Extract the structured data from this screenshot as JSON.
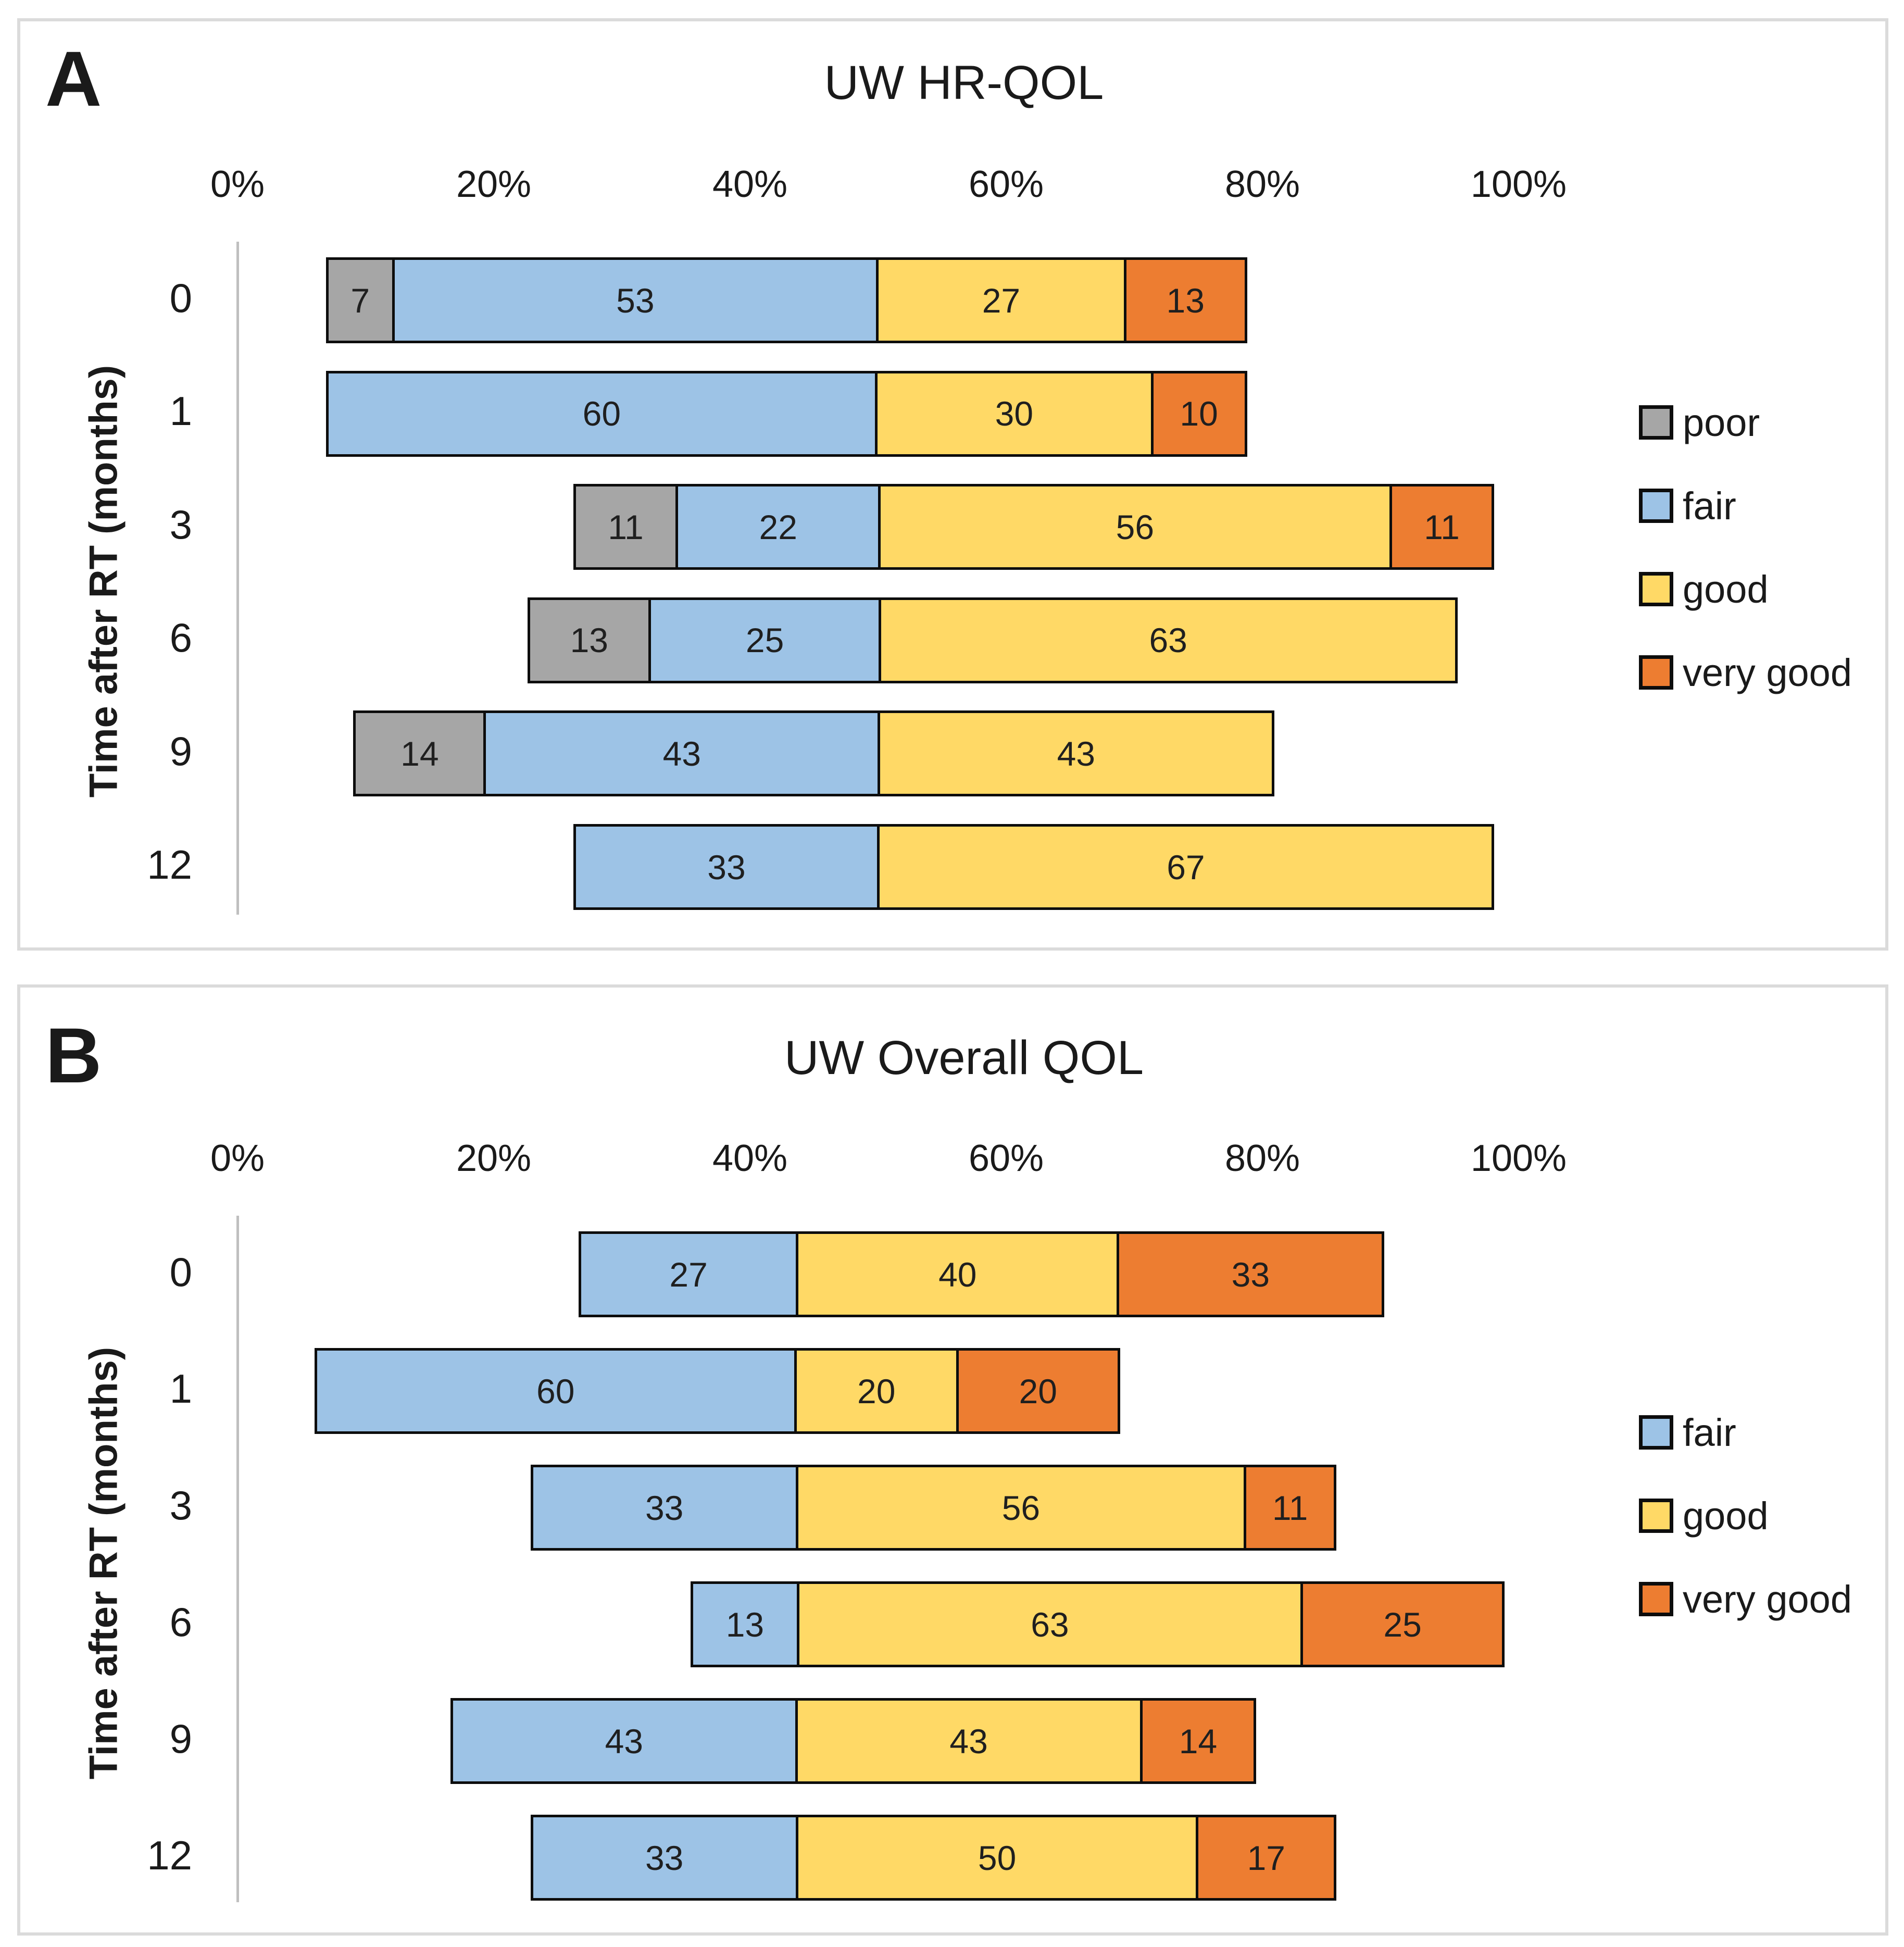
{
  "figure": {
    "panels": [
      {
        "panel_label": "A",
        "title": "UW HR-QOL",
        "y_axis_label": "Time after RT (months)",
        "x_tick_labels": [
          "0%",
          "20%",
          "40%",
          "60%",
          "80%",
          "100%"
        ],
        "row_labels": [
          "0",
          "1",
          "3",
          "6",
          "9",
          "12"
        ],
        "legend": [
          {
            "label": "poor",
            "color": "#A6A6A6"
          },
          {
            "label": "fair",
            "color": "#9DC3E6"
          },
          {
            "label": "good",
            "color": "#FFD966"
          },
          {
            "label": "very good",
            "color": "#ED7D31"
          }
        ]
      },
      {
        "panel_label": "B",
        "title": "UW Overall QOL",
        "y_axis_label": "Time after RT (months)",
        "x_tick_labels": [
          "0%",
          "20%",
          "40%",
          "60%",
          "80%",
          "100%"
        ],
        "row_labels": [
          "0",
          "1",
          "3",
          "6",
          "9",
          "12"
        ],
        "legend": [
          {
            "label": "fair",
            "color": "#9DC3E6"
          },
          {
            "label": "good",
            "color": "#FFD966"
          },
          {
            "label": "very good",
            "color": "#ED7D31"
          }
        ]
      }
    ],
    "colors": {
      "poor": "#A6A6A6",
      "fair": "#9DC3E6",
      "good": "#FFD966",
      "very_good": "#ED7D31",
      "bar_border": "#0d0d0d",
      "axis_line": "#BFBFBF",
      "panel_border": "#DBDBDB"
    }
  },
  "chart_data": [
    {
      "type": "bar",
      "orientation": "horizontal",
      "stacked": true,
      "diverging": true,
      "title": "UW HR-QOL",
      "ylabel": "Time after RT (months)",
      "categories": [
        0,
        1,
        3,
        6,
        9,
        12
      ],
      "series": [
        {
          "name": "poor",
          "color": "#A6A6A6",
          "values": [
            7,
            0,
            11,
            13,
            14,
            0
          ]
        },
        {
          "name": "fair",
          "color": "#9DC3E6",
          "values": [
            53,
            60,
            22,
            25,
            43,
            33
          ]
        },
        {
          "name": "good",
          "color": "#FFD966",
          "values": [
            27,
            30,
            56,
            63,
            43,
            67
          ]
        },
        {
          "name": "very good",
          "color": "#ED7D31",
          "values": [
            13,
            10,
            11,
            0,
            0,
            0
          ]
        }
      ],
      "xlim": [
        0,
        100
      ],
      "x_ticks": [
        0,
        20,
        40,
        60,
        80,
        100
      ],
      "tick_format": "percent",
      "legend_position": "right",
      "grid": false,
      "layout": {
        "align_boundary_after_series": "fair",
        "boundary_axis_pct": 50.0,
        "axis_pct_per_value_unit": 0.715
      }
    },
    {
      "type": "bar",
      "orientation": "horizontal",
      "stacked": true,
      "diverging": true,
      "title": "UW Overall QOL",
      "ylabel": "Time after RT (months)",
      "categories": [
        0,
        1,
        3,
        6,
        9,
        12
      ],
      "series": [
        {
          "name": "fair",
          "color": "#9DC3E6",
          "values": [
            27,
            60,
            33,
            13,
            43,
            33
          ]
        },
        {
          "name": "good",
          "color": "#FFD966",
          "values": [
            40,
            20,
            56,
            63,
            43,
            50
          ]
        },
        {
          "name": "very good",
          "color": "#ED7D31",
          "values": [
            33,
            20,
            11,
            25,
            14,
            17
          ]
        }
      ],
      "xlim": [
        0,
        100
      ],
      "x_ticks": [
        0,
        20,
        40,
        60,
        80,
        100
      ],
      "tick_format": "percent",
      "legend_position": "right",
      "grid": false,
      "layout": {
        "align_boundary_after_series": "fair",
        "boundary_axis_pct": 43.7,
        "axis_pct_per_value_unit": 0.625
      }
    }
  ]
}
